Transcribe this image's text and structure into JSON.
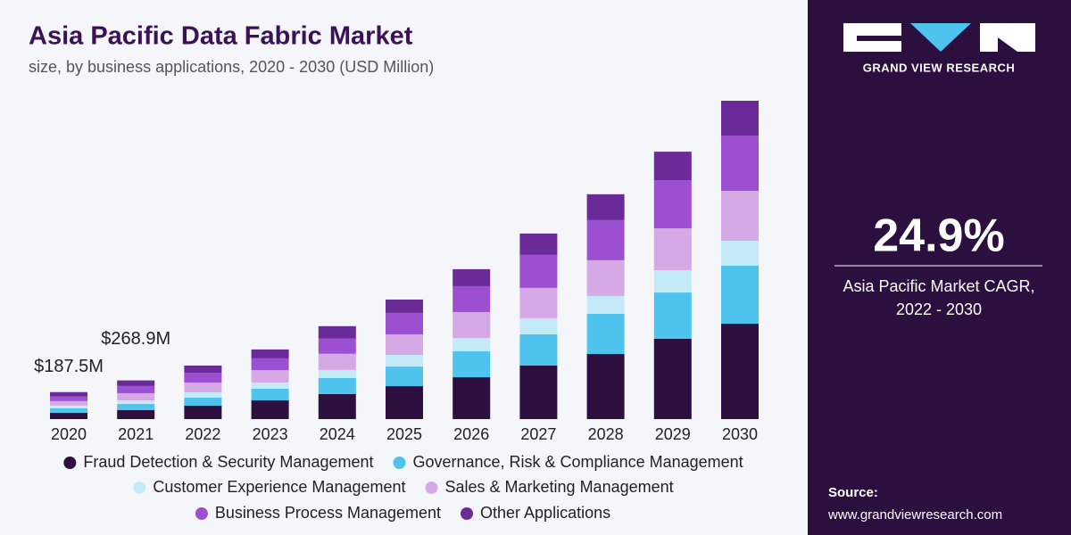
{
  "chart_data": {
    "type": "bar",
    "stacked": true,
    "title": "Asia Pacific Data Fabric Market",
    "subtitle": "size, by business applications, 2020 - 2030 (USD Million)",
    "categories": [
      "2020",
      "2021",
      "2022",
      "2023",
      "2024",
      "2025",
      "2026",
      "2027",
      "2028",
      "2029",
      "2030"
    ],
    "series": [
      {
        "name": "Fraud Detection & Security Management",
        "color": "#2d1040",
        "values": [
          44,
          62,
          93,
          130,
          174,
          229,
          291,
          372,
          453,
          558,
          663
        ]
      },
      {
        "name": "Governance, Risk & Compliance Management",
        "color": "#4dc3ee",
        "values": [
          31,
          43,
          56,
          81,
          112,
          136,
          180,
          217,
          279,
          322,
          403
        ]
      },
      {
        "name": "Customer Experience Management",
        "color": "#c4eaf8",
        "values": [
          19,
          25,
          37,
          43,
          56,
          81,
          93,
          112,
          124,
          155,
          174
        ]
      },
      {
        "name": "Sales & Marketing Management",
        "color": "#d5a8e6",
        "values": [
          31,
          50,
          68,
          87,
          112,
          143,
          180,
          211,
          248,
          291,
          347
        ]
      },
      {
        "name": "Business Process Management",
        "color": "#9c4fd0",
        "values": [
          31,
          50,
          68,
          81,
          105,
          149,
          180,
          229,
          279,
          335,
          384
        ]
      },
      {
        "name": "Other Applications",
        "color": "#6a2a98",
        "values": [
          31.5,
          38.9,
          50,
          62,
          87,
          93,
          118,
          149,
          180,
          198,
          242
        ]
      }
    ],
    "annotations": [
      {
        "value": 187.5,
        "label": "$187.5M"
      },
      {
        "value": 268.9,
        "label": "$268.9M"
      }
    ]
  },
  "sidebar": {
    "brand": "GRAND VIEW RESEARCH",
    "cagr": "24.9%",
    "cagr_label": [
      "Asia Pacific Market CAGR,",
      "2022 - 2030"
    ],
    "source_label": "Source:",
    "source_url": "www.grandviewresearch.com"
  }
}
